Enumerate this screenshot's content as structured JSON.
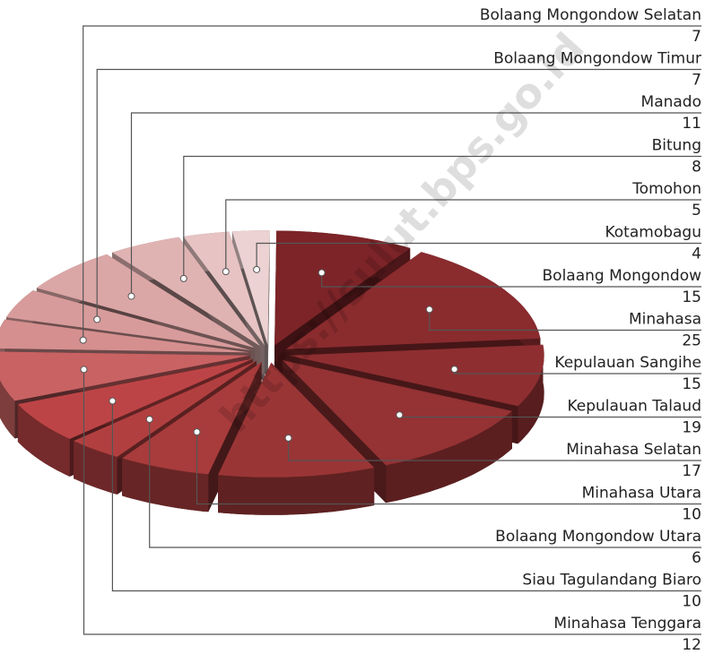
{
  "chart_data": {
    "type": "pie",
    "categories": [
      "Bolaang Mongondow Selatan",
      "Bolaang Mongondow Timur",
      "Manado",
      "Bitung",
      "Tomohon",
      "Kotamobagu",
      "Bolaang Mongondow",
      "Minahasa",
      "Kepulauan Sangihe",
      "Kepulauan Talaud",
      "Minahasa Selatan",
      "Minahasa Utara",
      "Bolaang Mongondow Utara",
      "Siau Tagulandang Biaro",
      "Minahasa Tenggara"
    ],
    "values": [
      7,
      7,
      11,
      8,
      5,
      4,
      15,
      25,
      15,
      19,
      17,
      10,
      6,
      10,
      12
    ],
    "colors": [
      "#d58f8f",
      "#d89b9b",
      "#dba6a6",
      "#e0b3b3",
      "#e7c3c3",
      "#ecd2d2",
      "#7c2428",
      "#8a2b2e",
      "#8e2e30",
      "#943234",
      "#9a3536",
      "#a83b3c",
      "#b23f40",
      "#bd4446",
      "#c96263"
    ],
    "watermark": "https://sulut.bps.go.id"
  }
}
